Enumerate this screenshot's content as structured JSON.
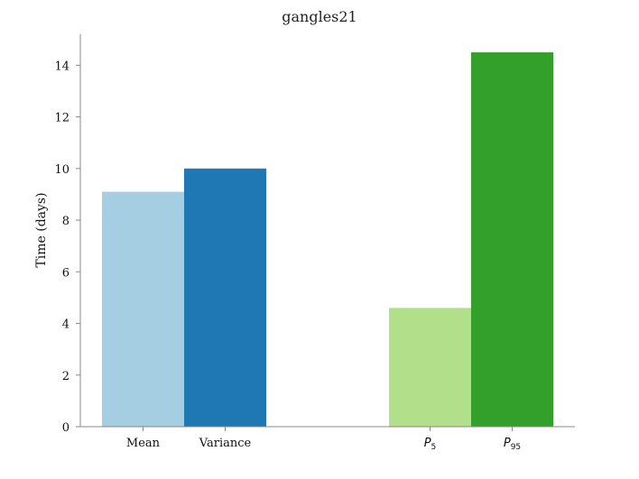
{
  "chart_data": {
    "type": "bar",
    "title": "gangles21",
    "xlabel": "",
    "ylabel": "Time (days)",
    "ylim": [
      0,
      15.2
    ],
    "yticks": [
      0,
      2,
      4,
      6,
      8,
      10,
      12,
      14
    ],
    "grid": false,
    "categories": [
      {
        "label": "Mean",
        "value": 9.1,
        "color": "#a6cee3"
      },
      {
        "label": "Variance",
        "value": 10.0,
        "color": "#1f78b4"
      },
      {
        "label": "P",
        "sub": "5",
        "value": 4.6,
        "color": "#b2df8a"
      },
      {
        "label": "P",
        "sub": "95",
        "value": 14.5,
        "color": "#33a02c"
      }
    ]
  }
}
